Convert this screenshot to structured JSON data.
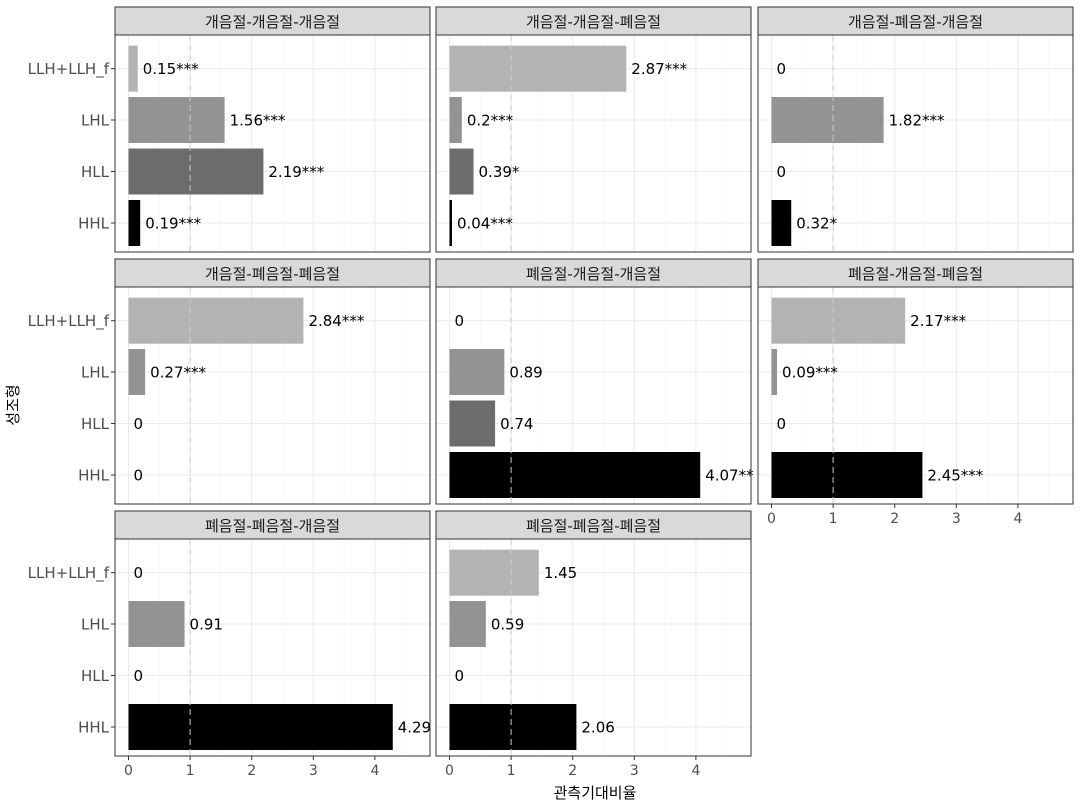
{
  "chart_data": {
    "type": "bar",
    "orientation": "horizontal",
    "xlabel": "관측기대비율",
    "ylabel": "성조형",
    "xlim": [
      0,
      4.9
    ],
    "xticks": [
      0,
      1,
      2,
      3,
      4
    ],
    "reference_line": 1,
    "grid": true,
    "categories": [
      "LLH+LLH_f",
      "LHL",
      "HLL",
      "HHL"
    ],
    "category_colors": {
      "LLH+LLH_f": "#b3b3b3",
      "LHL": "#939393",
      "HLL": "#6c6c6c",
      "HHL": "#000000"
    },
    "panels": [
      {
        "title": "개음절-개음절-개음절",
        "values": [
          0.15,
          1.56,
          2.19,
          0.19
        ],
        "labels": [
          "0.15***",
          "1.56***",
          "2.19***",
          "0.19***"
        ]
      },
      {
        "title": "개음절-개음절-폐음절",
        "values": [
          2.87,
          0.2,
          0.39,
          0.04
        ],
        "labels": [
          "2.87***",
          "0.2***",
          "0.39*",
          "0.04***"
        ]
      },
      {
        "title": "개음절-폐음절-개음절",
        "values": [
          0,
          1.82,
          0,
          0.32
        ],
        "labels": [
          "0",
          "1.82***",
          "0",
          "0.32*"
        ]
      },
      {
        "title": "개음절-폐음절-폐음절",
        "values": [
          2.84,
          0.27,
          0,
          0
        ],
        "labels": [
          "2.84***",
          "0.27***",
          "0",
          "0"
        ]
      },
      {
        "title": "폐음절-개음절-개음절",
        "values": [
          0,
          0.89,
          0.74,
          4.07
        ],
        "labels": [
          "0",
          "0.89",
          "0.74",
          "4.07**"
        ]
      },
      {
        "title": "폐음절-개음절-폐음절",
        "values": [
          2.17,
          0.09,
          0,
          2.45
        ],
        "labels": [
          "2.17***",
          "0.09***",
          "0",
          "2.45***"
        ]
      },
      {
        "title": "폐음절-폐음절-개음절",
        "values": [
          0,
          0.91,
          0,
          4.29
        ],
        "labels": [
          "0",
          "0.91",
          "0",
          "4.29"
        ]
      },
      {
        "title": "폐음절-폐음절-폐음절",
        "values": [
          1.45,
          0.59,
          0,
          2.06
        ],
        "labels": [
          "1.45",
          "0.59",
          "0",
          "2.06"
        ]
      }
    ]
  }
}
